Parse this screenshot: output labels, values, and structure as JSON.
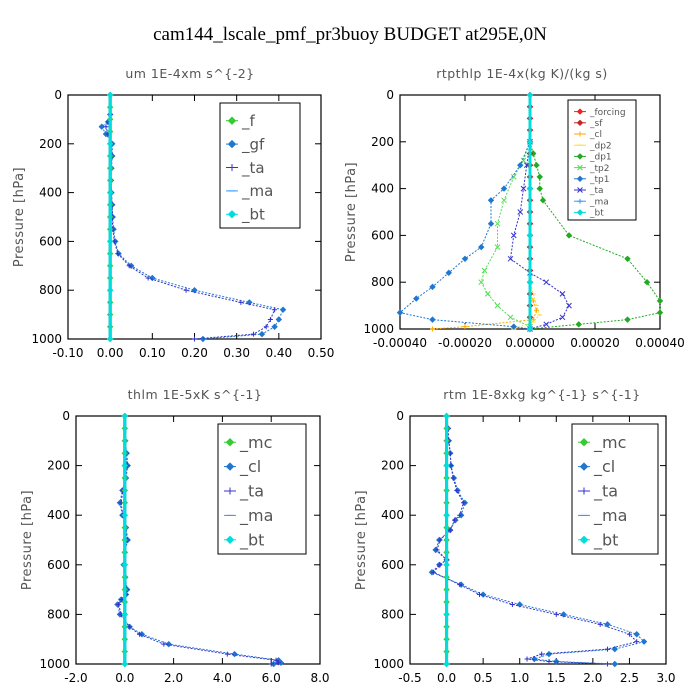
{
  "title": "cam144_lscale_pmf_pr3buoy  BUDGET at295E,0N",
  "chart_data": [
    {
      "type": "line",
      "title": "um  1E-4xm s^{-2}",
      "ylabel": "Pressure [hPa]",
      "xlim": [
        -0.1,
        0.5
      ],
      "ylim": [
        1000,
        0
      ],
      "xticks": [
        "-0.10",
        "0.00",
        "0.10",
        "0.20",
        "0.30",
        "0.40",
        "0.50"
      ],
      "yticks": [
        "0",
        "200",
        "400",
        "600",
        "800",
        "1000"
      ],
      "series": [
        {
          "name": "_f",
          "color": "#33cc33",
          "x": [
            0,
            0,
            0,
            0,
            0,
            0,
            0,
            0,
            0,
            0,
            0,
            0,
            0,
            0,
            0,
            0,
            0,
            0,
            0,
            0,
            0
          ],
          "y": [
            0,
            50,
            100,
            150,
            200,
            250,
            300,
            350,
            400,
            450,
            500,
            550,
            600,
            650,
            700,
            750,
            800,
            850,
            900,
            950,
            1000
          ]
        },
        {
          "name": "_gf",
          "color": "#1f77d0",
          "x": [
            0,
            0,
            -0.005,
            -0.02,
            -0.01,
            0.005,
            0.005,
            0.003,
            0.002,
            0.003,
            0.005,
            0.006,
            0.008,
            0.012,
            0.02,
            0.05,
            0.1,
            0.2,
            0.33,
            0.41,
            0.4,
            0.39,
            0.36,
            0.22
          ],
          "y": [
            0,
            80,
            110,
            130,
            160,
            200,
            250,
            300,
            350,
            400,
            450,
            500,
            550,
            600,
            650,
            700,
            750,
            800,
            850,
            880,
            920,
            950,
            980,
            1000
          ]
        },
        {
          "name": "_ta",
          "color": "#3333cc",
          "x": [
            0,
            0,
            -0.004,
            -0.01,
            -0.005,
            0.003,
            0.004,
            0.002,
            0.002,
            0.003,
            0.004,
            0.005,
            0.006,
            0.01,
            0.018,
            0.045,
            0.09,
            0.18,
            0.31,
            0.39,
            0.38,
            0.37,
            0.34,
            0.2
          ],
          "y": [
            0,
            80,
            110,
            130,
            160,
            200,
            250,
            300,
            350,
            400,
            450,
            500,
            550,
            600,
            650,
            700,
            750,
            800,
            850,
            880,
            920,
            950,
            980,
            1000
          ]
        },
        {
          "name": "_ma",
          "color": "#3399ff",
          "x": [
            0,
            0,
            0,
            0,
            0,
            0
          ],
          "y": [
            0,
            200,
            400,
            600,
            800,
            1000
          ]
        },
        {
          "name": "_bt",
          "color": "#00dddd",
          "x": [
            0,
            0,
            0,
            0,
            0,
            0
          ],
          "y": [
            0,
            200,
            400,
            600,
            800,
            1000
          ]
        }
      ]
    },
    {
      "type": "line",
      "title": "rtpthlp  1E-4x(kg K)/(kg s)",
      "ylabel": "Pressure [hPa]",
      "xlim": [
        -0.0004,
        0.0004
      ],
      "ylim": [
        1000,
        0
      ],
      "xticks": [
        "-0.00040",
        "-0.00020",
        "0.00000",
        "0.00020",
        "0.00040"
      ],
      "yticks": [
        "0",
        "200",
        "400",
        "600",
        "800",
        "1000"
      ],
      "series": [
        {
          "name": "_forcing",
          "color": "#ee2222",
          "x": [
            0,
            0,
            0,
            0,
            0,
            0,
            0,
            0,
            0,
            0,
            0,
            0,
            0,
            0,
            0,
            0,
            0,
            0,
            0,
            0,
            0
          ],
          "y": [
            0,
            50,
            100,
            150,
            200,
            250,
            300,
            350,
            400,
            450,
            500,
            550,
            600,
            650,
            700,
            750,
            800,
            850,
            900,
            950,
            1000
          ]
        },
        {
          "name": "_sf",
          "color": "#cc2222",
          "x": [
            0,
            0,
            0,
            0,
            0,
            0,
            0,
            0,
            0,
            0,
            0,
            0,
            0,
            0,
            0,
            0,
            0,
            0,
            0,
            0,
            0
          ],
          "y": [
            0,
            50,
            100,
            150,
            200,
            250,
            300,
            350,
            400,
            450,
            500,
            550,
            600,
            650,
            700,
            750,
            800,
            850,
            900,
            950,
            1000
          ]
        },
        {
          "name": "_cl",
          "color": "#ffaa00",
          "x": [
            0,
            0,
            0,
            0,
            0,
            0,
            1e-05,
            2e-05,
            1e-05,
            -0.0002,
            -0.0003
          ],
          "y": [
            0,
            200,
            400,
            600,
            800,
            850,
            880,
            920,
            960,
            990,
            1000
          ]
        },
        {
          "name": "_dp2",
          "color": "#ffdd33",
          "x": [
            0,
            0,
            0,
            0,
            0,
            1e-05,
            2e-05,
            3e-05,
            1e-05,
            -5e-05
          ],
          "y": [
            0,
            200,
            400,
            600,
            800,
            850,
            900,
            940,
            970,
            1000
          ]
        },
        {
          "name": "_dp1",
          "color": "#22aa22",
          "x": [
            0,
            1e-05,
            2e-05,
            3e-05,
            3e-05,
            4e-05,
            0.00012,
            0.0003,
            0.00036,
            0.0004,
            0.0004,
            0.0003,
            0.00015,
            0.0
          ],
          "y": [
            200,
            250,
            300,
            350,
            400,
            450,
            600,
            700,
            800,
            880,
            930,
            960,
            980,
            1000
          ]
        },
        {
          "name": "_tp2",
          "color": "#55dd55",
          "x": [
            0,
            -2e-05,
            -5e-05,
            -8e-05,
            -0.0001,
            -0.0001,
            -0.00014,
            -0.00015,
            -0.00013,
            -0.0001,
            -6e-05,
            0
          ],
          "y": [
            200,
            280,
            350,
            450,
            550,
            650,
            750,
            800,
            850,
            900,
            950,
            990
          ]
        },
        {
          "name": "_tp1",
          "color": "#1f77d0",
          "x": [
            0,
            -3e-05,
            -8e-05,
            -0.00012,
            -0.00012,
            -0.00015,
            -0.0002,
            -0.00025,
            -0.0003,
            -0.00035,
            -0.0004,
            -0.0003,
            -5e-05,
            0
          ],
          "y": [
            200,
            300,
            400,
            450,
            550,
            650,
            700,
            760,
            820,
            870,
            930,
            960,
            990,
            1000
          ]
        },
        {
          "name": "_ta",
          "color": "#3333cc",
          "x": [
            0,
            -1e-05,
            -2e-05,
            -3e-05,
            -5e-05,
            -6e-05,
            0,
            5e-05,
            0.0001,
            0.00012,
            0.0001,
            5e-05,
            0
          ],
          "y": [
            200,
            300,
            400,
            500,
            600,
            700,
            760,
            800,
            850,
            900,
            950,
            980,
            1000
          ]
        },
        {
          "name": "_ma",
          "color": "#3399ff",
          "x": [
            0,
            0,
            0,
            0,
            0,
            0
          ],
          "y": [
            0,
            200,
            400,
            600,
            800,
            1000
          ]
        },
        {
          "name": "_bt",
          "color": "#00dddd",
          "x": [
            0,
            0,
            0,
            0,
            0,
            0
          ],
          "y": [
            0,
            200,
            400,
            600,
            800,
            1000
          ]
        }
      ]
    },
    {
      "type": "line",
      "title": "thlm  1E-5xK s^{-1}",
      "ylabel": "Pressure [hPa]",
      "xlim": [
        -2.0,
        8.0
      ],
      "ylim": [
        1000,
        0
      ],
      "xticks": [
        "-2.0",
        "0.0",
        "2.0",
        "4.0",
        "6.0",
        "8.0"
      ],
      "yticks": [
        "0",
        "200",
        "400",
        "600",
        "800",
        "1000"
      ],
      "series": [
        {
          "name": "_mc",
          "color": "#33cc33",
          "x": [
            0,
            0,
            0,
            0,
            0,
            0,
            0,
            0,
            0,
            0,
            0,
            0,
            0,
            0,
            0,
            0,
            0,
            0,
            0,
            0,
            0
          ],
          "y": [
            0,
            50,
            100,
            150,
            200,
            250,
            300,
            350,
            400,
            450,
            500,
            550,
            600,
            650,
            700,
            750,
            800,
            850,
            900,
            950,
            1000
          ]
        },
        {
          "name": "_cl",
          "color": "#1f77d0",
          "x": [
            0,
            0.02,
            0.08,
            0.12,
            0.05,
            -0.1,
            -0.2,
            -0.1,
            0.05,
            0.12,
            0.0,
            -0.05,
            0.02,
            0.1,
            0.05,
            -0.15,
            -0.3,
            -0.2,
            0.2,
            0.7,
            1.8,
            4.5,
            6.3,
            6.4,
            6.1
          ],
          "y": [
            0,
            100,
            150,
            200,
            250,
            300,
            350,
            400,
            450,
            500,
            550,
            600,
            650,
            700,
            720,
            740,
            760,
            800,
            850,
            880,
            920,
            960,
            985,
            995,
            1000
          ]
        },
        {
          "name": "_ta",
          "color": "#3333cc",
          "x": [
            0,
            0.02,
            0.06,
            0.1,
            0.04,
            -0.08,
            -0.15,
            -0.08,
            0.04,
            0.1,
            0,
            -0.04,
            0.02,
            0.08,
            0.04,
            -0.12,
            -0.25,
            -0.15,
            0.18,
            0.6,
            1.6,
            4.2,
            6.2,
            6.3,
            6.0
          ],
          "y": [
            0,
            100,
            150,
            200,
            250,
            300,
            350,
            400,
            450,
            500,
            550,
            600,
            650,
            700,
            720,
            740,
            760,
            800,
            850,
            880,
            920,
            960,
            985,
            995,
            1000
          ]
        },
        {
          "name": "_ma",
          "color": "#3399ff",
          "x": [
            0,
            0,
            0,
            0,
            0,
            0
          ],
          "y": [
            0,
            200,
            400,
            600,
            800,
            1000
          ]
        },
        {
          "name": "_bt",
          "color": "#00dddd",
          "x": [
            0,
            0,
            0,
            0,
            0,
            0
          ],
          "y": [
            0,
            200,
            400,
            600,
            800,
            1000
          ]
        }
      ]
    },
    {
      "type": "line",
      "title": "rtm  1E-8xkg kg^{-1} s^{-1}",
      "ylabel": "Pressure [hPa]",
      "xlim": [
        -0.5,
        3.0
      ],
      "ylim": [
        1000,
        0
      ],
      "xticks": [
        "-0.5",
        "0.0",
        "0.5",
        "1.0",
        "1.5",
        "2.0",
        "2.5",
        "3.0"
      ],
      "yticks": [
        "0",
        "200",
        "400",
        "600",
        "800",
        "1000"
      ],
      "series": [
        {
          "name": "_mc",
          "color": "#33cc33",
          "x": [
            0,
            0,
            0,
            0,
            0,
            0,
            0,
            0,
            0,
            0,
            0,
            0,
            0,
            0,
            0,
            0,
            0,
            0,
            0,
            0,
            0
          ],
          "y": [
            0,
            50,
            100,
            150,
            200,
            250,
            300,
            350,
            400,
            450,
            500,
            550,
            600,
            650,
            700,
            750,
            800,
            850,
            900,
            950,
            1000
          ]
        },
        {
          "name": "_cl",
          "color": "#1f77d0",
          "x": [
            0,
            0.02,
            0.03,
            0.05,
            0.06,
            0.1,
            0.15,
            0.25,
            0.2,
            0.12,
            0.05,
            -0.1,
            -0.15,
            0.0,
            -0.1,
            -0.2,
            0.2,
            0.5,
            1.0,
            1.6,
            2.2,
            2.6,
            2.7,
            2.3,
            1.4,
            1.2,
            1.5,
            2.3
          ],
          "y": [
            0,
            50,
            100,
            150,
            200,
            250,
            300,
            350,
            400,
            420,
            460,
            500,
            540,
            580,
            600,
            630,
            680,
            720,
            760,
            800,
            840,
            880,
            910,
            940,
            960,
            980,
            990,
            1000
          ]
        },
        {
          "name": "_ta",
          "color": "#3333cc",
          "x": [
            0,
            0.02,
            0.03,
            0.05,
            0.06,
            0.09,
            0.14,
            0.23,
            0.18,
            0.11,
            0.05,
            -0.09,
            -0.13,
            0.0,
            -0.09,
            -0.18,
            0.18,
            0.45,
            0.9,
            1.5,
            2.1,
            2.5,
            2.6,
            2.2,
            1.3,
            1.1,
            1.4,
            2.2
          ],
          "y": [
            0,
            50,
            100,
            150,
            200,
            250,
            300,
            350,
            400,
            420,
            460,
            500,
            540,
            580,
            600,
            630,
            680,
            720,
            760,
            800,
            840,
            880,
            910,
            940,
            960,
            980,
            990,
            1000
          ]
        },
        {
          "name": "_ma",
          "color": "#3399ff",
          "x": [
            0,
            0,
            0,
            0,
            0,
            0
          ],
          "y": [
            0,
            200,
            400,
            600,
            800,
            1000
          ]
        },
        {
          "name": "_bt",
          "color": "#00dddd",
          "x": [
            0,
            0,
            0,
            0,
            0,
            0
          ],
          "y": [
            0,
            200,
            400,
            600,
            800,
            1000
          ]
        }
      ]
    }
  ]
}
